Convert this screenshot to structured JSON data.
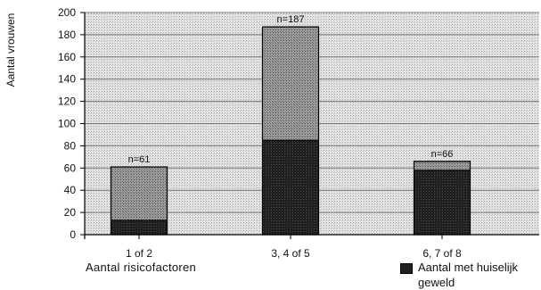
{
  "chart_data": {
    "type": "bar",
    "stacked": true,
    "ylabel": "Aantal vrouwen",
    "xlabel": "Aantal risicofactoren",
    "categories": [
      "1 of 2",
      "3, 4 of 5",
      "6, 7 of 8"
    ],
    "totals": [
      61,
      187,
      66
    ],
    "total_labels": [
      "n=61",
      "n=187",
      "n=66"
    ],
    "series": [
      {
        "name": "Aantal met huiselijk geweld",
        "values": [
          13,
          85,
          58
        ],
        "color": "#1f1f1f"
      },
      {
        "values": [
          48,
          102,
          8
        ],
        "color": "#8a8a8a"
      }
    ],
    "ylim": [
      0,
      200
    ],
    "yticks": [
      0,
      20,
      40,
      60,
      80,
      100,
      120,
      140,
      160,
      180,
      200
    ],
    "grid": true,
    "legend": "bottom-right"
  },
  "legend_label": "Aantal met huiselijk geweld"
}
